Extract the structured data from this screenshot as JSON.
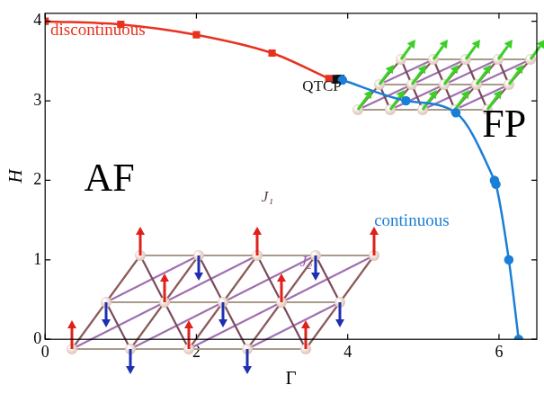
{
  "chart_data": {
    "type": "line",
    "x_label": "Γ",
    "y_label": "H",
    "xlim": [
      0,
      6.5
    ],
    "xticks": [
      0,
      2,
      4,
      6
    ],
    "ylim": [
      0,
      4.1
    ],
    "yticks": [
      0,
      1,
      2,
      3,
      4
    ],
    "grid": false,
    "series": [
      {
        "name": "discontinuous",
        "color": "#e8311f",
        "marker": "square",
        "line_style": "solid",
        "x": [
          0,
          1,
          2,
          3,
          3.75
        ],
        "values": [
          4.0,
          3.96,
          3.83,
          3.6,
          3.28
        ]
      },
      {
        "name": "continuous",
        "color": "#1a7fd6",
        "marker": "circle",
        "line_style": "solid",
        "x": [
          3.93,
          4.77,
          5.43,
          5.94,
          5.96,
          6.13,
          6.26
        ],
        "values": [
          3.26,
          3.0,
          2.85,
          2.0,
          1.95,
          1.0,
          0
        ]
      },
      {
        "name": "QTCP",
        "color": "#111111",
        "marker": "square",
        "line_style": "solid",
        "x": [
          3.85,
          3.9
        ],
        "values": [
          3.27,
          3.27
        ]
      }
    ],
    "annotations": [
      "FP",
      "AF",
      "J₁",
      "J₂"
    ]
  }
}
